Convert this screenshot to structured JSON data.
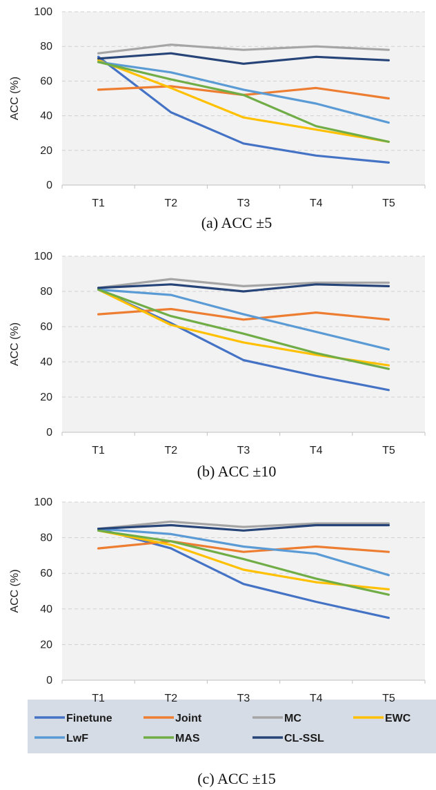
{
  "chart_data": [
    {
      "type": "line",
      "caption": "(a) ACC ±5",
      "ylabel": "ACC (%)",
      "xlabel": "",
      "ylim": [
        0,
        100
      ],
      "yticks": [
        0,
        20,
        40,
        60,
        80,
        100
      ],
      "grid": true,
      "categories": [
        "T1",
        "T2",
        "T3",
        "T4",
        "T5"
      ],
      "series": [
        {
          "name": "Finetune",
          "values": [
            74,
            42,
            24,
            17,
            13
          ]
        },
        {
          "name": "Joint",
          "values": [
            55,
            57,
            52,
            56,
            50
          ]
        },
        {
          "name": "MC",
          "values": [
            76,
            81,
            78,
            80,
            78
          ]
        },
        {
          "name": "EWC",
          "values": [
            72,
            56,
            39,
            32,
            25
          ]
        },
        {
          "name": "LwF",
          "values": [
            71,
            65,
            55,
            47,
            36
          ]
        },
        {
          "name": "MAS",
          "values": [
            71,
            61,
            52,
            34,
            25
          ]
        },
        {
          "name": "CL-SSL",
          "values": [
            73,
            76,
            70,
            74,
            72
          ]
        }
      ]
    },
    {
      "type": "line",
      "caption": "(b) ACC ±10",
      "ylabel": "ACC (%)",
      "xlabel": "",
      "ylim": [
        0,
        100
      ],
      "yticks": [
        0,
        20,
        40,
        60,
        80,
        100
      ],
      "grid": true,
      "categories": [
        "T1",
        "T2",
        "T3",
        "T4",
        "T5"
      ],
      "series": [
        {
          "name": "Finetune",
          "values": [
            81,
            62,
            41,
            32,
            24
          ]
        },
        {
          "name": "Joint",
          "values": [
            67,
            70,
            64,
            68,
            64
          ]
        },
        {
          "name": "MC",
          "values": [
            82,
            87,
            83,
            85,
            85
          ]
        },
        {
          "name": "EWC",
          "values": [
            81,
            61,
            51,
            44,
            38
          ]
        },
        {
          "name": "LwF",
          "values": [
            81,
            78,
            67,
            57,
            47
          ]
        },
        {
          "name": "MAS",
          "values": [
            81,
            66,
            56,
            45,
            36
          ]
        },
        {
          "name": "CL-SSL",
          "values": [
            82,
            84,
            80,
            84,
            83
          ]
        }
      ]
    },
    {
      "type": "line",
      "caption": "(c) ACC ±15",
      "ylabel": "ACC (%)",
      "xlabel": "",
      "ylim": [
        0,
        100
      ],
      "yticks": [
        0,
        20,
        40,
        60,
        80,
        100
      ],
      "grid": true,
      "categories": [
        "T1",
        "T2",
        "T3",
        "T4",
        "T5"
      ],
      "series": [
        {
          "name": "Finetune",
          "values": [
            85,
            74,
            54,
            44,
            35
          ]
        },
        {
          "name": "Joint",
          "values": [
            74,
            78,
            72,
            75,
            72
          ]
        },
        {
          "name": "MC",
          "values": [
            85,
            89,
            86,
            88,
            88
          ]
        },
        {
          "name": "EWC",
          "values": [
            84,
            76,
            62,
            55,
            51
          ]
        },
        {
          "name": "LwF",
          "values": [
            85,
            82,
            75,
            71,
            59
          ]
        },
        {
          "name": "MAS",
          "values": [
            84,
            78,
            68,
            57,
            48
          ]
        },
        {
          "name": "CL-SSL",
          "values": [
            85,
            87,
            84,
            87,
            87
          ]
        }
      ]
    }
  ],
  "legend": {
    "placement": "bottom",
    "items": [
      {
        "label": "Finetune",
        "color": "#4472C4"
      },
      {
        "label": "Joint",
        "color": "#ED7D31"
      },
      {
        "label": "MC",
        "color": "#A5A5A5"
      },
      {
        "label": "EWC",
        "color": "#FFC000"
      },
      {
        "label": "LwF",
        "color": "#5B9BD5"
      },
      {
        "label": "MAS",
        "color": "#70AD47"
      },
      {
        "label": "CL-SSL",
        "color": "#264478"
      }
    ]
  },
  "colors": {
    "plot_background": "#F2F2F2",
    "legend_background": "#D6DCE5",
    "grid": "#D0D0D0"
  }
}
